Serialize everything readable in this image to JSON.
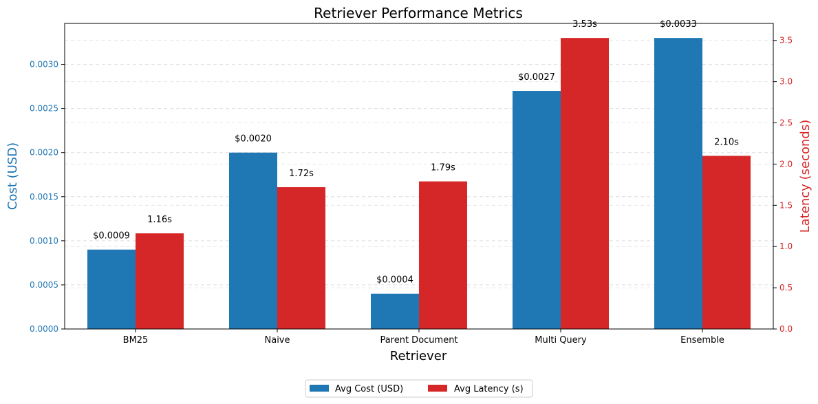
{
  "chart_data": {
    "type": "bar",
    "title": "Retriever Performance Metrics",
    "xlabel": "Retriever",
    "categories": [
      "BM25",
      "Naive",
      "Parent Document",
      "Multi Query",
      "Ensemble"
    ],
    "series": [
      {
        "name": "Avg Cost (USD)",
        "axis": "left",
        "color": "#1f77b4",
        "values": [
          0.0009,
          0.002,
          0.0004,
          0.0027,
          0.0033
        ],
        "labels": [
          "$0.0009",
          "$0.0020",
          "$0.0004",
          "$0.0027",
          "$0.0033"
        ]
      },
      {
        "name": "Avg Latency (s)",
        "axis": "right",
        "color": "#d62728",
        "values": [
          1.16,
          1.72,
          1.79,
          3.53,
          2.1
        ],
        "labels": [
          "1.16s",
          "1.72s",
          "1.79s",
          "3.53s",
          "2.10s"
        ]
      }
    ],
    "left_axis": {
      "label": "Cost (USD)",
      "color": "#1f77b4",
      "ylim": [
        0,
        0.003465
      ],
      "ticks": [
        0,
        0.0005,
        0.001,
        0.0015,
        0.002,
        0.0025,
        0.003
      ],
      "tick_labels": [
        "0.0000",
        "0.0005",
        "0.0010",
        "0.0015",
        "0.0020",
        "0.0025",
        "0.0030"
      ]
    },
    "right_axis": {
      "label": "Latency (seconds)",
      "color": "#d62728",
      "ylim": [
        0,
        3.7065
      ],
      "ticks": [
        0,
        0.5,
        1.0,
        1.5,
        2.0,
        2.5,
        3.0,
        3.5
      ],
      "tick_labels": [
        "0.0",
        "0.5",
        "1.0",
        "1.5",
        "2.0",
        "2.5",
        "3.0",
        "3.5"
      ]
    },
    "grid": true,
    "legend_position": "bottom-center"
  }
}
